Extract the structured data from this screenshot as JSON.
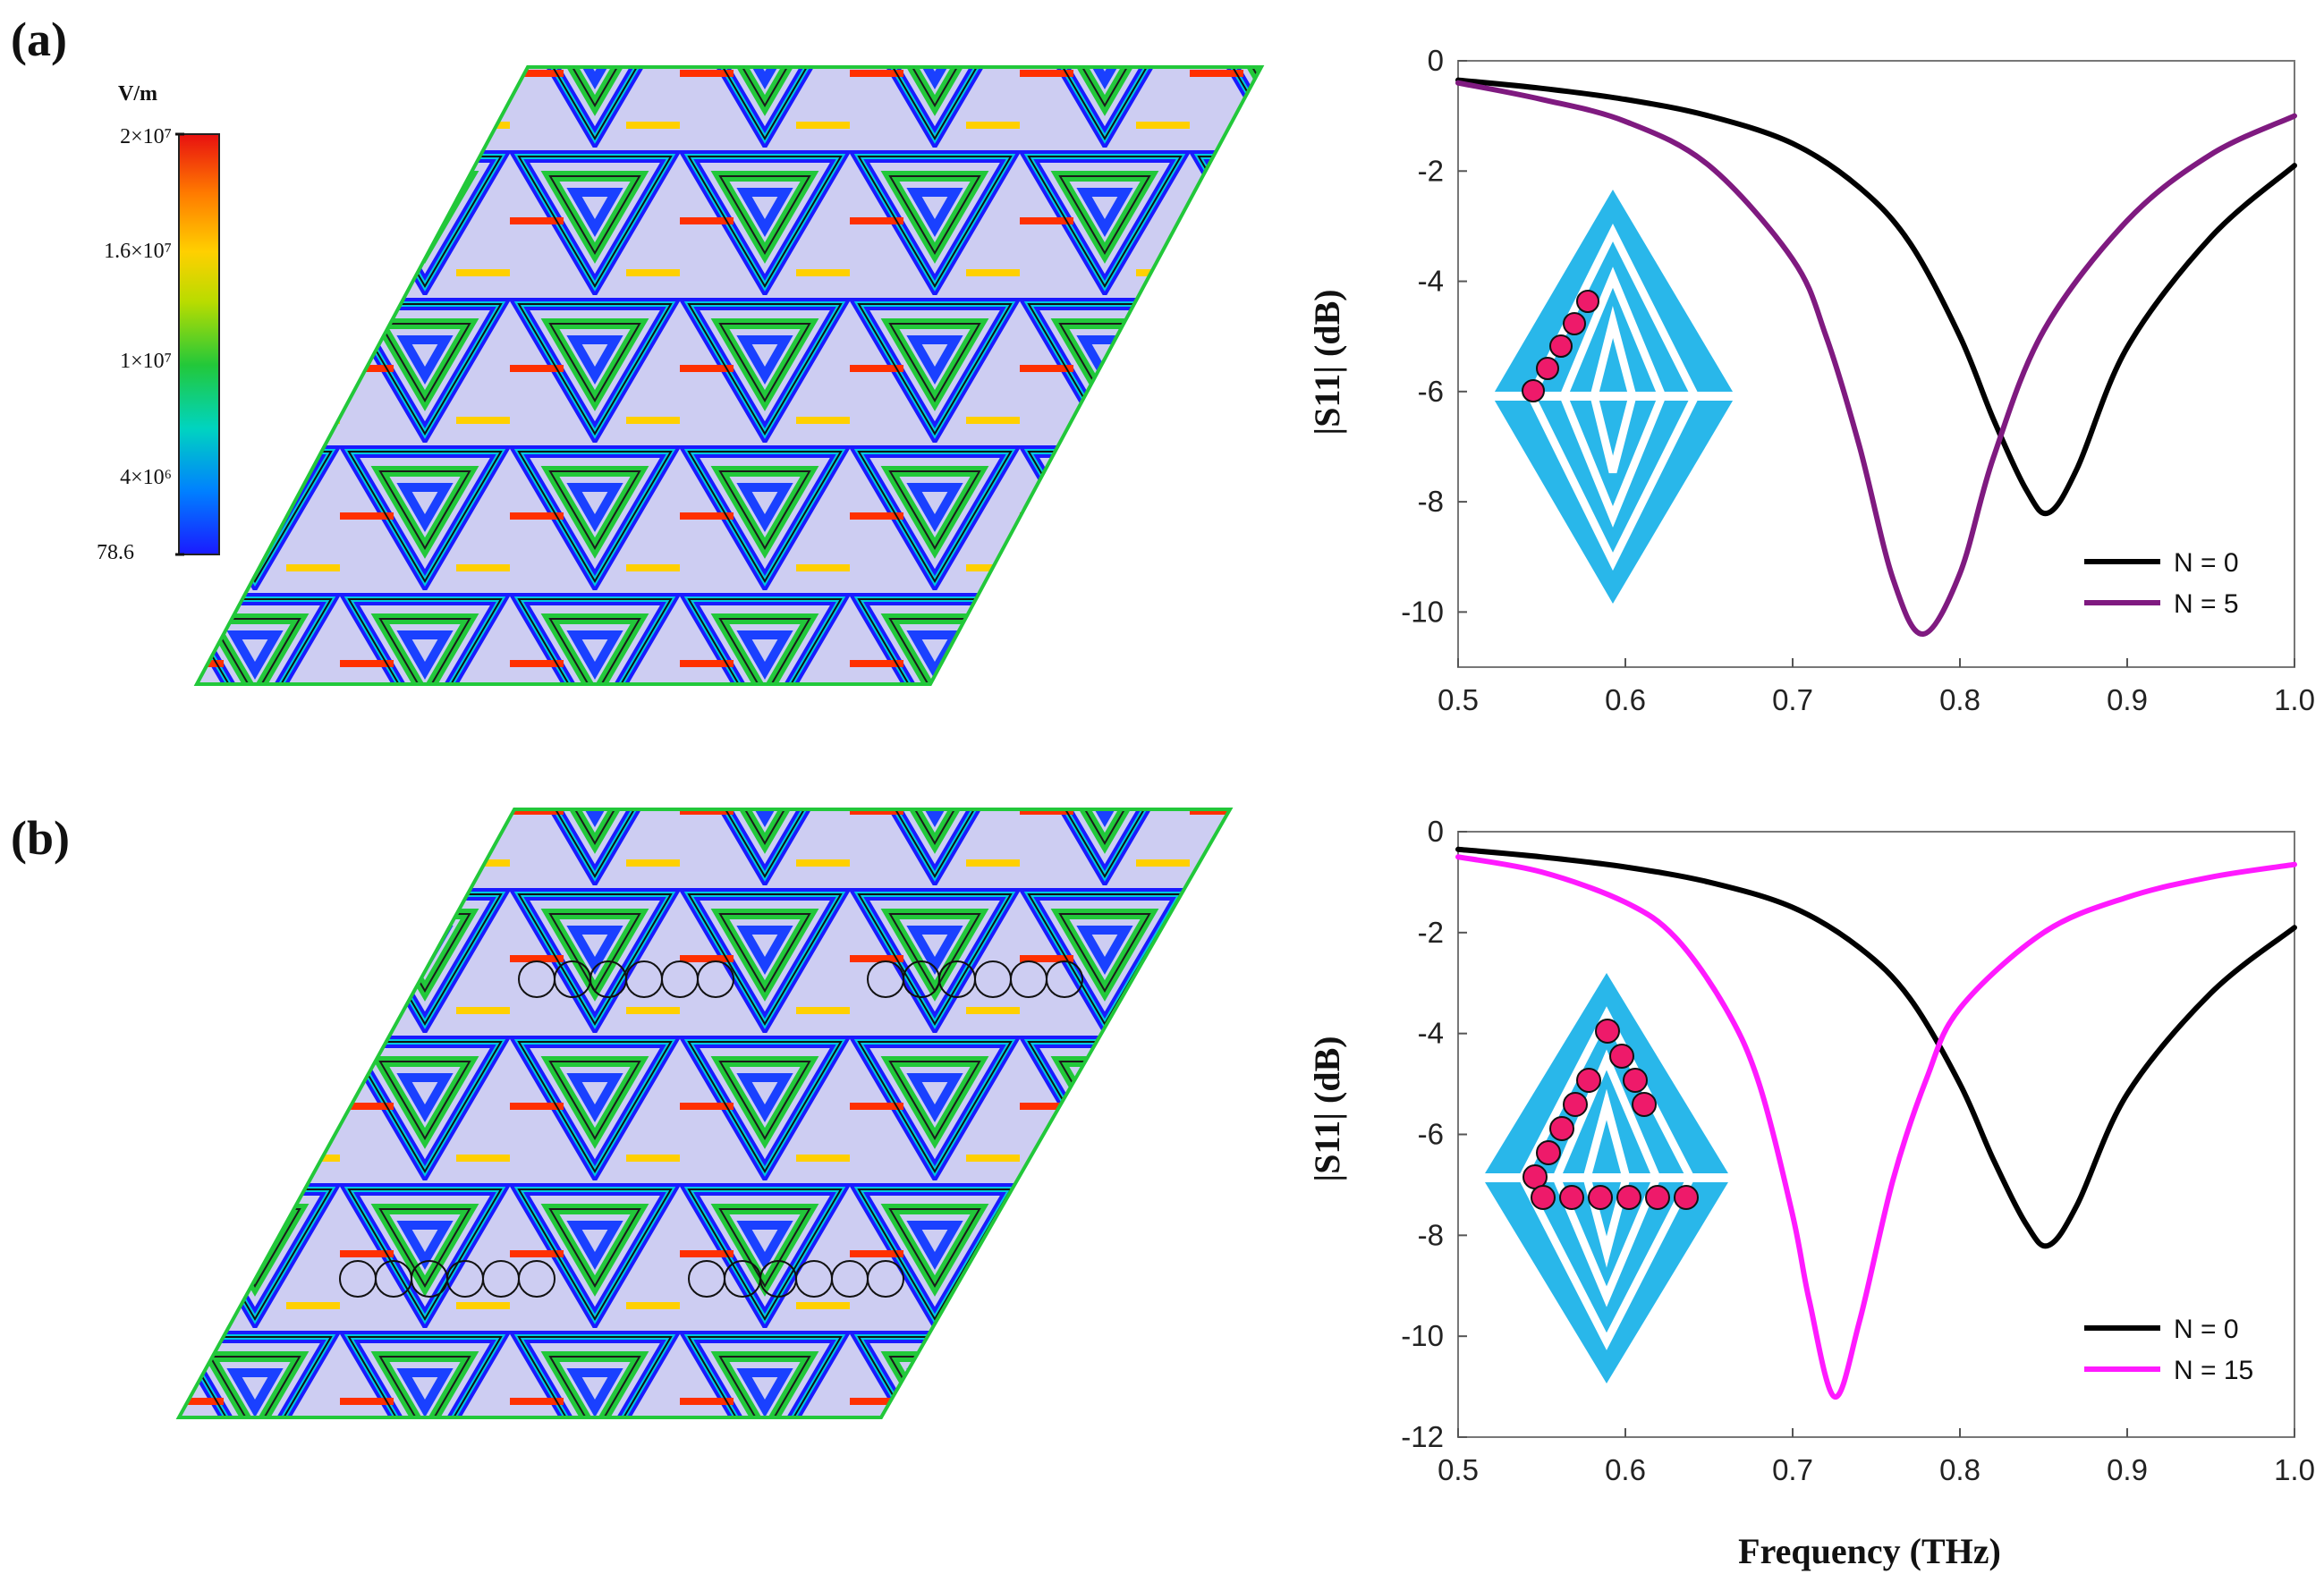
{
  "panels": [
    {
      "id": "a",
      "label": "(a)"
    },
    {
      "id": "b",
      "label": "(b)"
    }
  ],
  "colorbar": {
    "unit": "V/m",
    "tick_labels": [
      "2×10⁷",
      "1.6×10⁷",
      "1×10⁷",
      "4×10⁶",
      "78.6"
    ],
    "colors": [
      "#1a1aff",
      "#00aaff",
      "#00d4c0",
      "#22c83a",
      "#c8e000",
      "#ffd000",
      "#ff7a00",
      "#e81010"
    ]
  },
  "colors": {
    "n0": "#000000",
    "n5": "#7f1a80",
    "n15": "#ff1aff",
    "inset_fill": "#29b7ea",
    "inset_dots": "#ee1a6a",
    "field_bg": "#cdcdf2"
  },
  "chart_data": [
    {
      "type": "line",
      "panel": "a",
      "xlabel": "",
      "ylabel": "|S11| (dB)",
      "xlim": [
        0.5,
        1.0
      ],
      "ylim": [
        -11,
        0
      ],
      "x_ticks": [
        0.5,
        0.6,
        0.7,
        0.8,
        0.9,
        1.0
      ],
      "x_tick_labels": [
        "0.5",
        "0.6",
        "0.7",
        "0.8",
        "0.9",
        "1.0"
      ],
      "y_ticks": [
        0,
        -2,
        -4,
        -6,
        -8,
        -10
      ],
      "y_tick_labels": [
        "0",
        "-2",
        "-4",
        "-6",
        "-8",
        "-10"
      ],
      "legend_position": "bottom-right",
      "series": [
        {
          "name": "N = 0",
          "color_key": "n0",
          "x": [
            0.5,
            0.55,
            0.6,
            0.65,
            0.7,
            0.74,
            0.77,
            0.8,
            0.82,
            0.84,
            0.853,
            0.87,
            0.9,
            0.95,
            1.0
          ],
          "y": [
            -0.35,
            -0.5,
            -0.7,
            -1.0,
            -1.5,
            -2.3,
            -3.3,
            -5.0,
            -6.5,
            -7.8,
            -8.2,
            -7.4,
            -5.2,
            -3.2,
            -1.9
          ]
        },
        {
          "name": "N = 5",
          "color_key": "n5",
          "x": [
            0.5,
            0.55,
            0.6,
            0.65,
            0.7,
            0.72,
            0.74,
            0.76,
            0.778,
            0.8,
            0.82,
            0.85,
            0.9,
            0.95,
            1.0
          ],
          "y": [
            -0.4,
            -0.7,
            -1.1,
            -1.9,
            -3.6,
            -5.0,
            -7.0,
            -9.4,
            -10.4,
            -9.3,
            -7.2,
            -4.9,
            -2.9,
            -1.7,
            -1.0
          ]
        }
      ]
    },
    {
      "type": "line",
      "panel": "b",
      "xlabel": "Frequency (THz)",
      "ylabel": "|S11| (dB)",
      "xlim": [
        0.5,
        1.0
      ],
      "ylim": [
        -12,
        0
      ],
      "x_ticks": [
        0.5,
        0.6,
        0.7,
        0.8,
        0.9,
        1.0
      ],
      "x_tick_labels": [
        "0.5",
        "0.6",
        "0.7",
        "0.8",
        "0.9",
        "1.0"
      ],
      "y_ticks": [
        0,
        -2,
        -4,
        -6,
        -8,
        -10,
        -12
      ],
      "y_tick_labels": [
        "0",
        "-2",
        "-4",
        "-6",
        "-8",
        "-10",
        "-12"
      ],
      "legend_position": "bottom-right",
      "series": [
        {
          "name": "N = 0",
          "color_key": "n0",
          "x": [
            0.5,
            0.55,
            0.6,
            0.65,
            0.7,
            0.74,
            0.77,
            0.8,
            0.82,
            0.84,
            0.853,
            0.87,
            0.9,
            0.95,
            1.0
          ],
          "y": [
            -0.35,
            -0.5,
            -0.7,
            -1.0,
            -1.5,
            -2.3,
            -3.3,
            -5.0,
            -6.5,
            -7.8,
            -8.2,
            -7.4,
            -5.2,
            -3.2,
            -1.9
          ]
        },
        {
          "name": "N = 15",
          "color_key": "n15",
          "x": [
            0.5,
            0.55,
            0.6,
            0.63,
            0.66,
            0.68,
            0.7,
            0.71,
            0.725,
            0.74,
            0.76,
            0.78,
            0.8,
            0.85,
            0.9,
            0.95,
            1.0
          ],
          "y": [
            -0.5,
            -0.8,
            -1.4,
            -2.1,
            -3.5,
            -5.0,
            -7.6,
            -9.3,
            -11.2,
            -9.7,
            -6.9,
            -4.9,
            -3.5,
            -2.0,
            -1.3,
            -0.9,
            -0.65
          ]
        }
      ]
    }
  ]
}
